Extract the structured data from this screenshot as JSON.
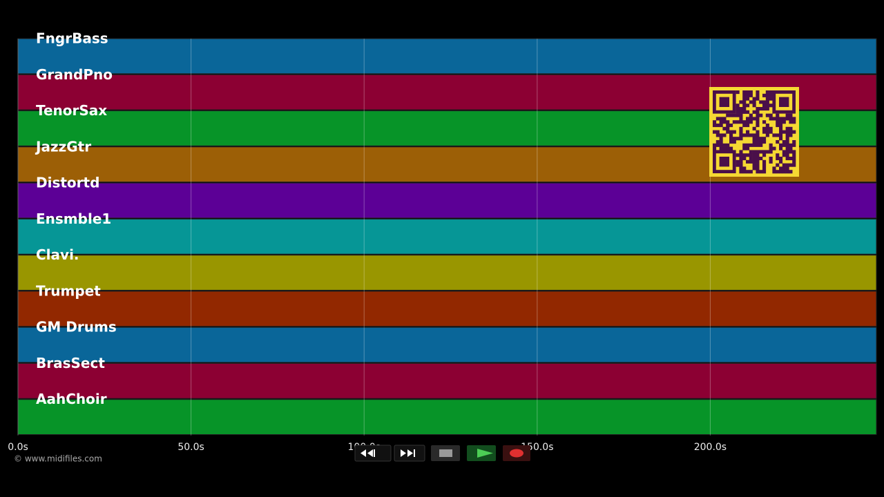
{
  "timeline": {
    "tracks": [
      {
        "name": "FngrBass",
        "color": "#0a6699"
      },
      {
        "name": "GrandPno",
        "color": "#8c0033"
      },
      {
        "name": "TenorSax",
        "color": "#079428"
      },
      {
        "name": "JazzGtr",
        "color": "#9c5f06"
      },
      {
        "name": "Distortd",
        "color": "#5c0096"
      },
      {
        "name": "Ensmble1",
        "color": "#069696"
      },
      {
        "name": "Clavi.",
        "color": "#999600"
      },
      {
        "name": "Trumpet",
        "color": "#922800"
      },
      {
        "name": "GM Drums",
        "color": "#0a6699"
      },
      {
        "name": "BrasSect",
        "color": "#8c0033"
      },
      {
        "name": "AahChoir",
        "color": "#079428"
      }
    ],
    "xlim": [
      0,
      248
    ],
    "xticks": [
      {
        "value": 0,
        "label": "0.0s"
      },
      {
        "value": 50,
        "label": "50.0s"
      },
      {
        "value": 100,
        "label": "100.0s"
      },
      {
        "value": 150,
        "label": "150.0s"
      },
      {
        "value": 200,
        "label": "200.0s"
      }
    ],
    "grid": true
  },
  "footer": {
    "credit": "© www.midifiles.com"
  }
}
